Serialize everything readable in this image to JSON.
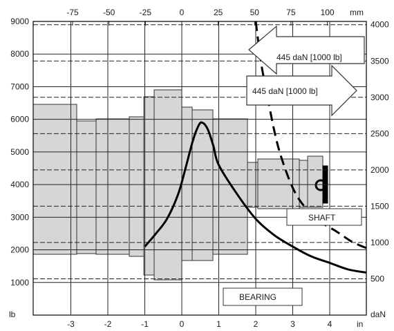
{
  "units": {
    "left": "lb",
    "right": "daN",
    "top": "mm",
    "bottom": "in"
  },
  "axes": {
    "left_ticks": [
      "9000",
      "8000",
      "7000",
      "6000",
      "5000",
      "4000",
      "3000",
      "2000",
      "1000"
    ],
    "right_ticks": [
      "4000",
      "3500",
      "3000",
      "2500",
      "2000",
      "1500",
      "1000",
      "500"
    ],
    "top_ticks": [
      "-75",
      "-50",
      "-25",
      "0",
      "25",
      "50",
      "75",
      "100"
    ],
    "bottom_ticks": [
      "-3",
      "-2",
      "-1",
      "0",
      "1",
      "2",
      "3",
      "4"
    ]
  },
  "arrows": {
    "upper": "445 daN [1000 lb]",
    "lower": "445 daN [1000 lb]"
  },
  "labels": {
    "shaft": "SHAFT",
    "bearing": "BEARING"
  },
  "colors": {
    "part_fill": "#d6d6d6",
    "part_stroke": "#333333",
    "curve": "#000000",
    "grid": "#222222"
  },
  "chart_data": {
    "type": "line",
    "x_unit": "in",
    "y_unit": "lb",
    "xlim": [
      -4,
      5
    ],
    "ylim": [
      0,
      9000
    ],
    "series": [
      {
        "line_style": "solid",
        "x": [
          -1,
          -0.7,
          -0.4,
          -0.1,
          0.1,
          0.3,
          0.45,
          0.55,
          0.7,
          0.85,
          1.0,
          1.5,
          2.0,
          2.5,
          3.0,
          3.5,
          4.0,
          4.5,
          5.0
        ],
        "y": [
          2100,
          2500,
          2950,
          3700,
          4500,
          5350,
          5800,
          5900,
          5700,
          5200,
          4600,
          3700,
          2950,
          2450,
          2100,
          1800,
          1600,
          1400,
          1300
        ]
      },
      {
        "line_style": "dashed",
        "x": [
          2.0,
          2.15,
          2.3,
          2.5,
          2.7,
          3.0,
          3.3,
          3.7,
          4.2,
          4.6,
          5.0
        ],
        "y": [
          9000,
          7700,
          6800,
          5650,
          4800,
          3900,
          3350,
          2900,
          2550,
          2250,
          2050
        ]
      }
    ]
  }
}
